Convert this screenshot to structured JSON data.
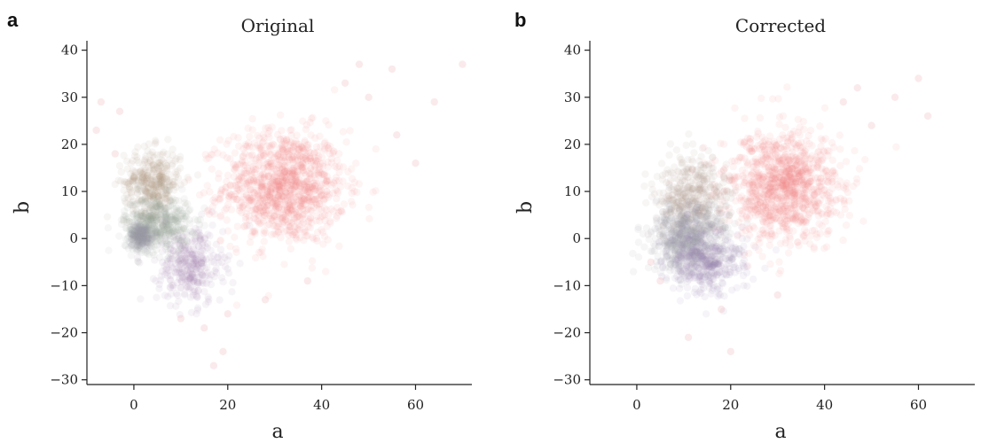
{
  "panels": [
    {
      "letter": "a",
      "chart_data": {
        "type": "scatter",
        "title": "Original",
        "xlabel": "a",
        "ylabel": "b",
        "xlim": [
          -10,
          72
        ],
        "ylim": [
          -31,
          42
        ],
        "xticks": [
          0,
          20,
          40,
          60
        ],
        "yticks": [
          -30,
          -20,
          -10,
          0,
          10,
          20,
          30,
          40
        ],
        "xtick_labels": [
          "0",
          "20",
          "40",
          "60"
        ],
        "ytick_labels": [
          "−30",
          "−20",
          "−10",
          "0",
          "10",
          "20",
          "30",
          "40"
        ],
        "grid": false,
        "clusters": [
          {
            "color": "#f08080",
            "center": [
              32,
              11
            ],
            "spread": [
              6.5,
              6
            ],
            "count": 1100
          },
          {
            "color": "#b5a080",
            "center": [
              4,
              12
            ],
            "spread": [
              3,
              3.5
            ],
            "count": 380
          },
          {
            "color": "#9aa59c",
            "center": [
              5,
              3
            ],
            "spread": [
              3.5,
              3
            ],
            "count": 500
          },
          {
            "color": "#a0a0a8",
            "center": [
              1.5,
              0.5
            ],
            "spread": [
              1.2,
              1.2
            ],
            "count": 220
          },
          {
            "color": "#a58ab0",
            "center": [
              12,
              -6
            ],
            "spread": [
              3.5,
              4
            ],
            "count": 320
          }
        ],
        "outliers": [
          [
            -7,
            29
          ],
          [
            -3,
            27
          ],
          [
            -8,
            23
          ],
          [
            48,
            37
          ],
          [
            55,
            36
          ],
          [
            70,
            37
          ],
          [
            64,
            29
          ],
          [
            60,
            16
          ],
          [
            19,
            -24
          ],
          [
            17,
            -27
          ],
          [
            28,
            -13
          ],
          [
            37,
            -9
          ],
          [
            20,
            -16
          ],
          [
            45,
            33
          ],
          [
            50,
            30
          ],
          [
            -4,
            18
          ],
          [
            56,
            22
          ],
          [
            15,
            -19
          ],
          [
            10,
            -17
          ]
        ]
      }
    },
    {
      "letter": "b",
      "chart_data": {
        "type": "scatter",
        "title": "Corrected",
        "xlabel": "a",
        "ylabel": "b",
        "xlim": [
          -10,
          72
        ],
        "ylim": [
          -31,
          42
        ],
        "xticks": [
          0,
          20,
          40,
          60
        ],
        "yticks": [
          -30,
          -20,
          -10,
          0,
          10,
          20,
          30,
          40
        ],
        "xtick_labels": [
          "0",
          "20",
          "40",
          "60"
        ],
        "ytick_labels": [
          "−30",
          "−20",
          "−10",
          "0",
          "10",
          "20",
          "30",
          "40"
        ],
        "grid": false,
        "clusters": [
          {
            "color": "#f08080",
            "center": [
              31,
              11
            ],
            "spread": [
              6,
              6
            ],
            "count": 1050
          },
          {
            "color": "#b09a90",
            "center": [
              12,
              9
            ],
            "spread": [
              4,
              4
            ],
            "count": 420
          },
          {
            "color": "#9a98a8",
            "center": [
              11,
              0
            ],
            "spread": [
              4,
              3.5
            ],
            "count": 650
          },
          {
            "color": "#a08ab0",
            "center": [
              15,
              -5
            ],
            "spread": [
              4,
              3.5
            ],
            "count": 360
          }
        ],
        "outliers": [
          [
            60,
            34
          ],
          [
            62,
            26
          ],
          [
            55,
            30
          ],
          [
            20,
            -24
          ],
          [
            11,
            -21
          ],
          [
            47,
            32
          ],
          [
            5,
            -9
          ],
          [
            3,
            -5
          ],
          [
            50,
            24
          ],
          [
            18,
            -15
          ],
          [
            30,
            -12
          ],
          [
            44,
            29
          ]
        ]
      }
    }
  ]
}
